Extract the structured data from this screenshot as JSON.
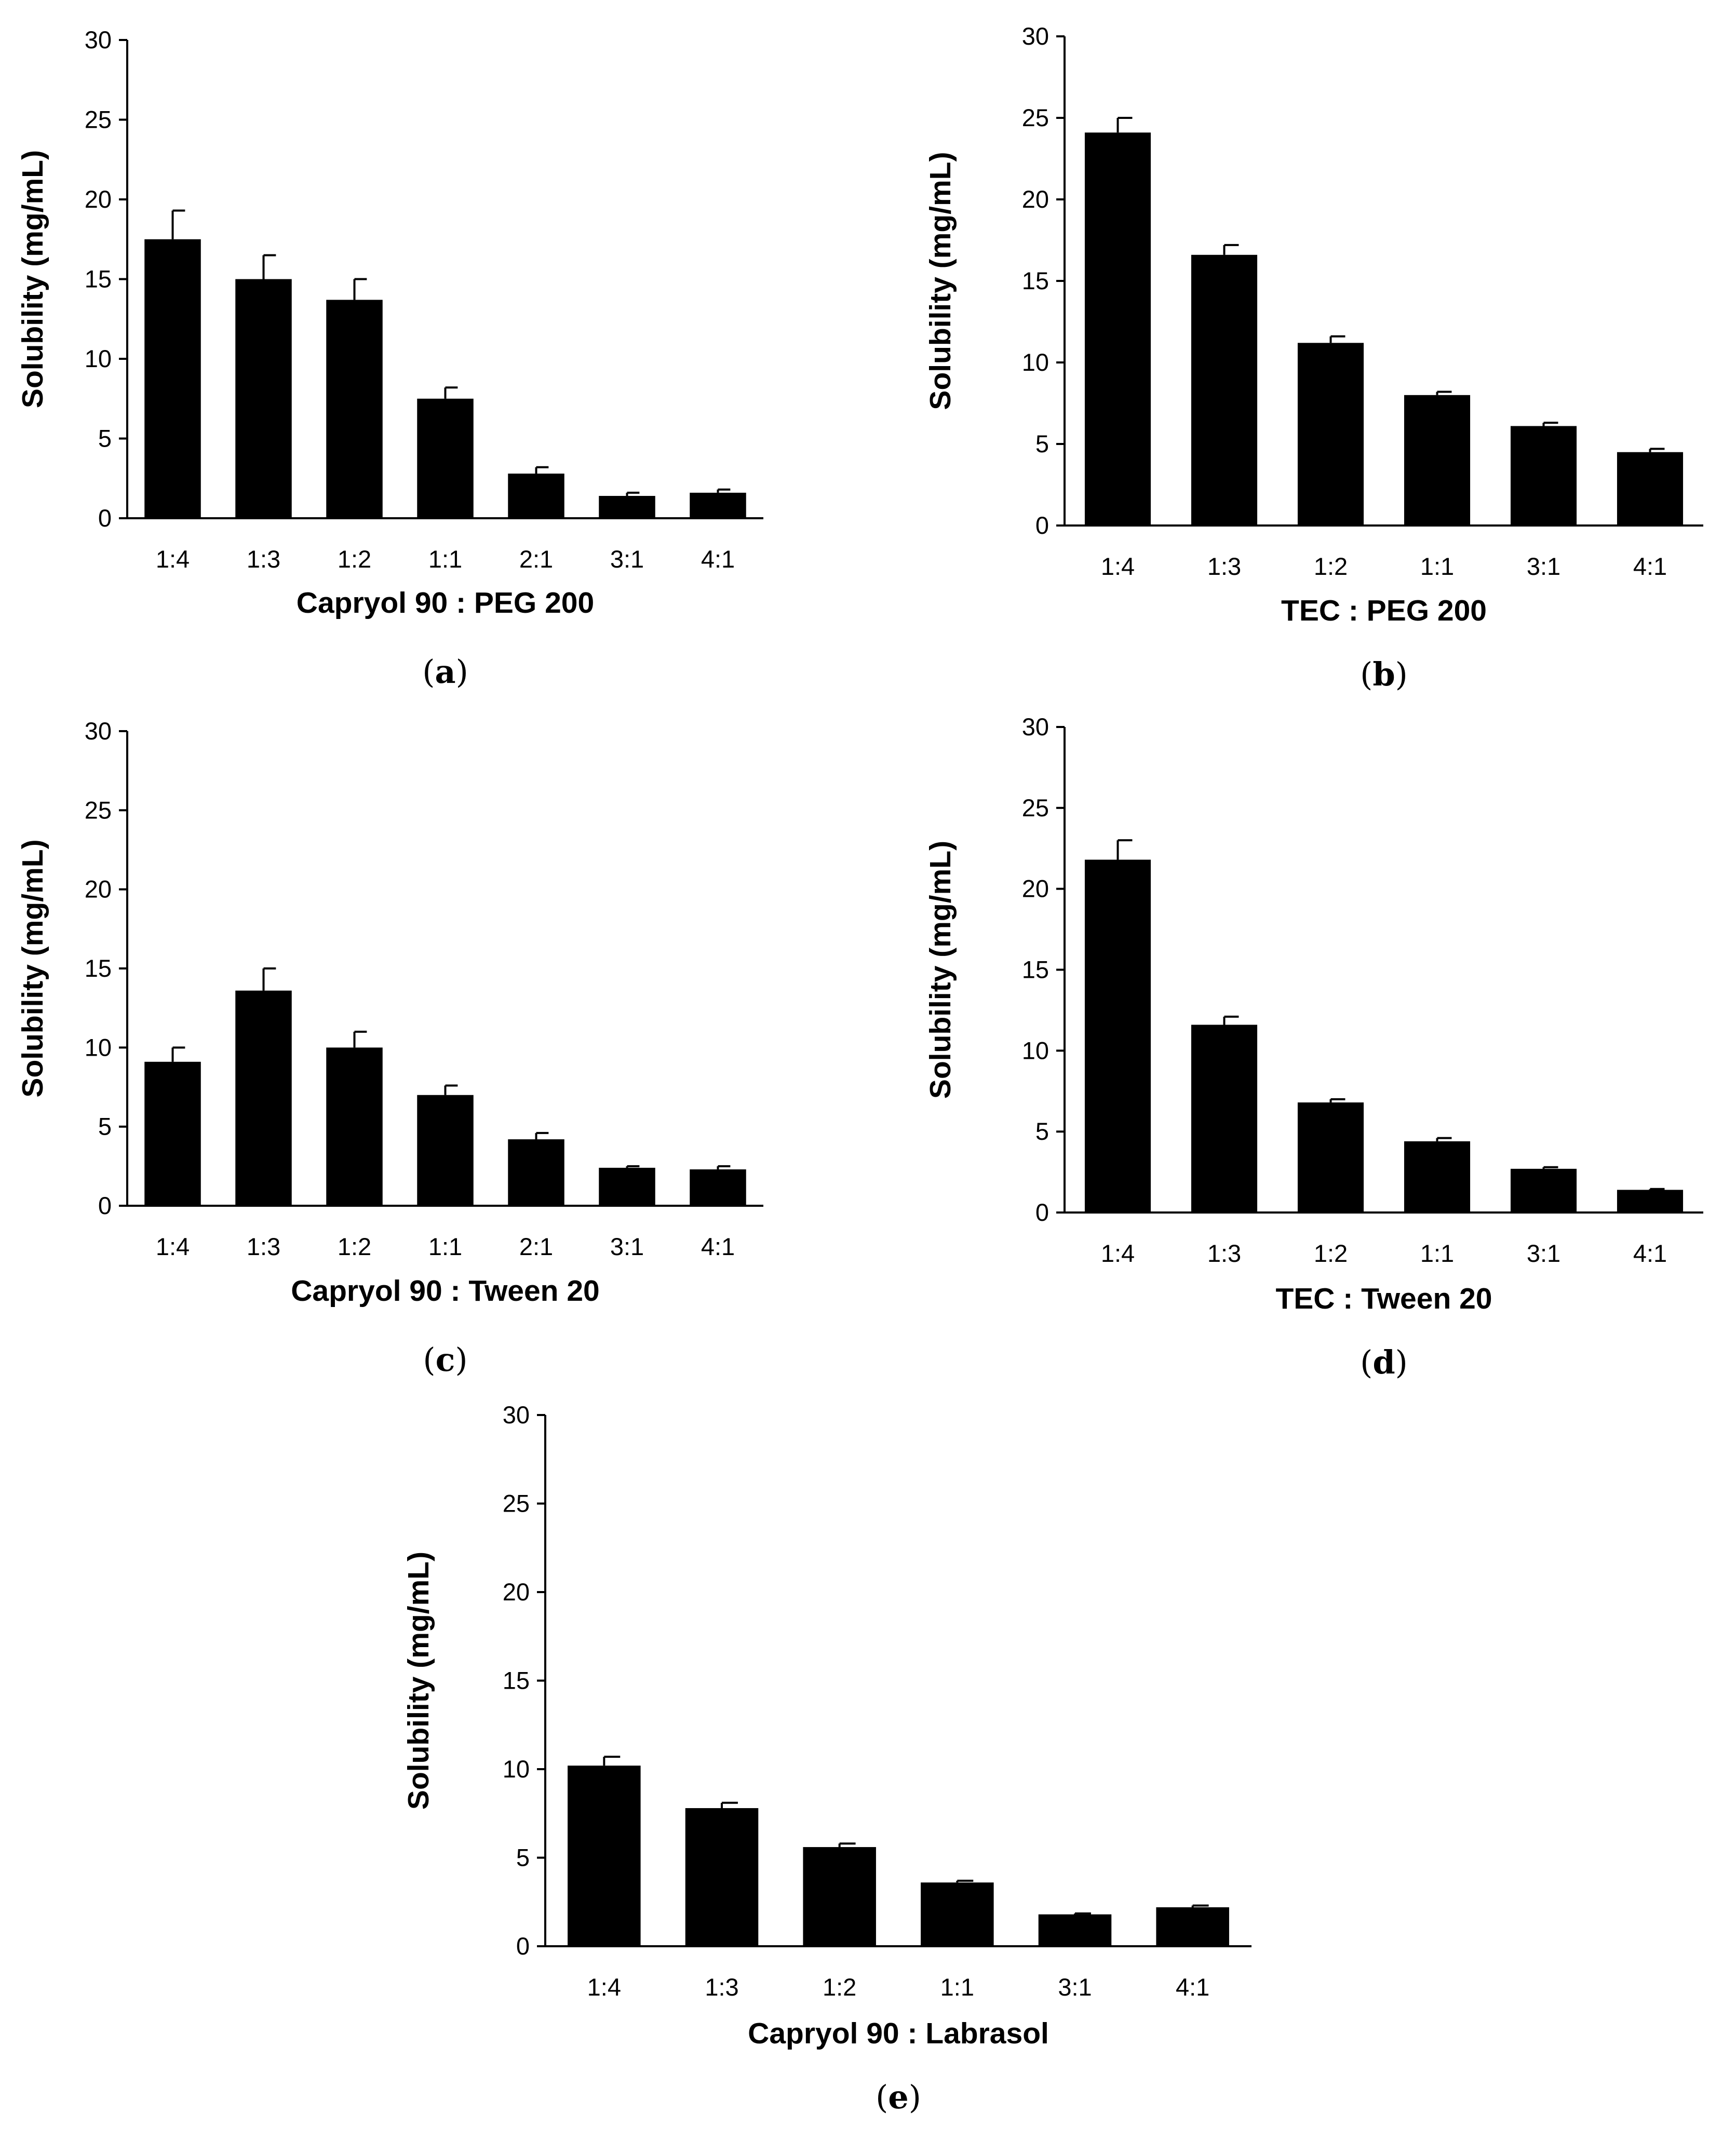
{
  "chart_data": [
    {
      "type": "bar",
      "panel_label": "a",
      "title": "",
      "xlabel": "Capryol 90 : PEG 200",
      "ylabel": "Solubility (mg/mL)",
      "ylim": [
        0,
        30
      ],
      "yticks": [
        "0",
        "5",
        "10",
        "15",
        "20",
        "25",
        "30"
      ],
      "categories": [
        "1:4",
        "1:3",
        "1:2",
        "1:1",
        "2:1",
        "3:1",
        "4:1"
      ],
      "values": [
        17.5,
        15.0,
        13.7,
        7.5,
        2.8,
        1.4,
        1.6
      ],
      "errors": [
        1.8,
        1.5,
        1.3,
        0.7,
        0.4,
        0.2,
        0.2
      ],
      "bar_color": "#000000",
      "grid": false
    },
    {
      "type": "bar",
      "panel_label": "b",
      "title": "",
      "xlabel": "TEC : PEG 200",
      "ylabel": "Solubility (mg/mL)",
      "ylim": [
        0,
        30
      ],
      "yticks": [
        "0",
        "5",
        "10",
        "15",
        "20",
        "25",
        "30"
      ],
      "categories": [
        "1:4",
        "1:3",
        "1:2",
        "1:1",
        "3:1",
        "4:1"
      ],
      "values": [
        24.1,
        16.6,
        11.2,
        8.0,
        6.1,
        4.5
      ],
      "errors": [
        0.9,
        0.6,
        0.4,
        0.2,
        0.2,
        0.2
      ],
      "bar_color": "#000000",
      "grid": false
    },
    {
      "type": "bar",
      "panel_label": "c",
      "title": "",
      "xlabel": "Capryol 90 : Tween 20",
      "ylabel": "Solubility (mg/mL)",
      "ylim": [
        0,
        30
      ],
      "yticks": [
        "0",
        "5",
        "10",
        "15",
        "20",
        "25",
        "30"
      ],
      "categories": [
        "1:4",
        "1:3",
        "1:2",
        "1:1",
        "2:1",
        "3:1",
        "4:1"
      ],
      "values": [
        9.1,
        13.6,
        10.0,
        7.0,
        4.2,
        2.4,
        2.3
      ],
      "errors": [
        0.9,
        1.4,
        1.0,
        0.6,
        0.4,
        0.1,
        0.2
      ],
      "bar_color": "#000000",
      "grid": false
    },
    {
      "type": "bar",
      "panel_label": "d",
      "title": "",
      "xlabel": "TEC : Tween 20",
      "ylabel": "Solubility (mg/mL)",
      "ylim": [
        0,
        30
      ],
      "yticks": [
        "0",
        "5",
        "10",
        "15",
        "20",
        "25",
        "30"
      ],
      "categories": [
        "1:4",
        "1:3",
        "1:2",
        "1:1",
        "3:1",
        "4:1"
      ],
      "values": [
        21.8,
        11.6,
        6.8,
        4.4,
        2.7,
        1.4
      ],
      "errors": [
        1.2,
        0.5,
        0.2,
        0.2,
        0.1,
        0.05
      ],
      "bar_color": "#000000",
      "grid": false
    },
    {
      "type": "bar",
      "panel_label": "e",
      "title": "",
      "xlabel": "Capryol 90 : Labrasol",
      "ylabel": "Solubility (mg/mL)",
      "ylim": [
        0,
        30
      ],
      "yticks": [
        "0",
        "5",
        "10",
        "15",
        "20",
        "25",
        "30"
      ],
      "categories": [
        "1:4",
        "1:3",
        "1:2",
        "1:1",
        "3:1",
        "4:1"
      ],
      "values": [
        10.2,
        7.8,
        5.6,
        3.6,
        1.8,
        2.2
      ],
      "errors": [
        0.5,
        0.3,
        0.2,
        0.1,
        0.05,
        0.1
      ],
      "bar_color": "#000000",
      "grid": false
    }
  ]
}
